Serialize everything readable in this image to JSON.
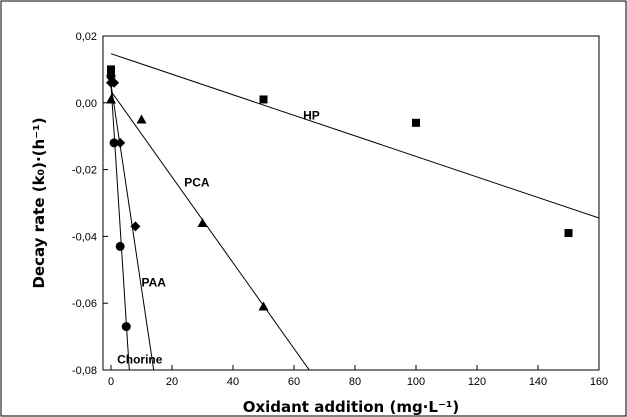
{
  "chart_data": {
    "type": "scatter",
    "title": "",
    "xlabel": "Oxidant addition (mg·L⁻¹)",
    "ylabel": "Decay rate (k₀)·(h⁻¹)",
    "xlim": [
      0,
      160
    ],
    "ylim": [
      -0.08,
      0.02
    ],
    "x_ticks": [
      "0",
      "20",
      "40",
      "60",
      "80",
      "100",
      "120",
      "140",
      "160"
    ],
    "y_ticks": [
      "0,02",
      "0,00",
      "-0,02",
      "-0,04",
      "-0,06",
      "-0,08"
    ],
    "x_tick_values": [
      0,
      20,
      40,
      60,
      80,
      100,
      120,
      140,
      160
    ],
    "y_tick_values": [
      0.02,
      0.0,
      -0.02,
      -0.04,
      -0.06,
      -0.08
    ],
    "grid": false,
    "series": [
      {
        "name": "HP",
        "marker": "square",
        "points": [
          [
            0,
            0.01
          ],
          [
            50,
            0.001
          ],
          [
            100,
            -0.006
          ],
          [
            150,
            -0.039
          ]
        ],
        "fit_line": [
          [
            0,
            0.0147
          ],
          [
            160,
            -0.0345
          ]
        ]
      },
      {
        "name": "PCA",
        "marker": "triangle",
        "points": [
          [
            0,
            0.001
          ],
          [
            10,
            -0.005
          ],
          [
            30,
            -0.036
          ],
          [
            50,
            -0.061
          ]
        ],
        "fit_line": [
          [
            0,
            0.0035
          ],
          [
            65,
            -0.08
          ]
        ]
      },
      {
        "name": "PAA",
        "marker": "diamond",
        "points": [
          [
            0,
            0.006
          ],
          [
            1,
            0.006
          ],
          [
            3,
            -0.012
          ],
          [
            8,
            -0.037
          ]
        ],
        "fit_line": [
          [
            0,
            0.0055
          ],
          [
            14,
            -0.08
          ]
        ]
      },
      {
        "name": "Chorine",
        "marker": "circle",
        "points": [
          [
            0,
            0.008
          ],
          [
            1,
            -0.012
          ],
          [
            3,
            -0.043
          ],
          [
            5,
            -0.067
          ]
        ],
        "fit_line": [
          [
            0,
            0.0055
          ],
          [
            6,
            -0.08
          ]
        ]
      }
    ],
    "annotations": [
      {
        "text": "HP",
        "x": 63,
        "y": -0.005
      },
      {
        "text": "PCA",
        "x": 24,
        "y": -0.025
      },
      {
        "text": "PAA",
        "x": 10,
        "y": -0.055
      },
      {
        "text": "Chorine",
        "x": 2,
        "y": -0.078
      }
    ],
    "colors": {
      "line": "#000000",
      "marker": "#000000",
      "frame": "#000000"
    }
  }
}
